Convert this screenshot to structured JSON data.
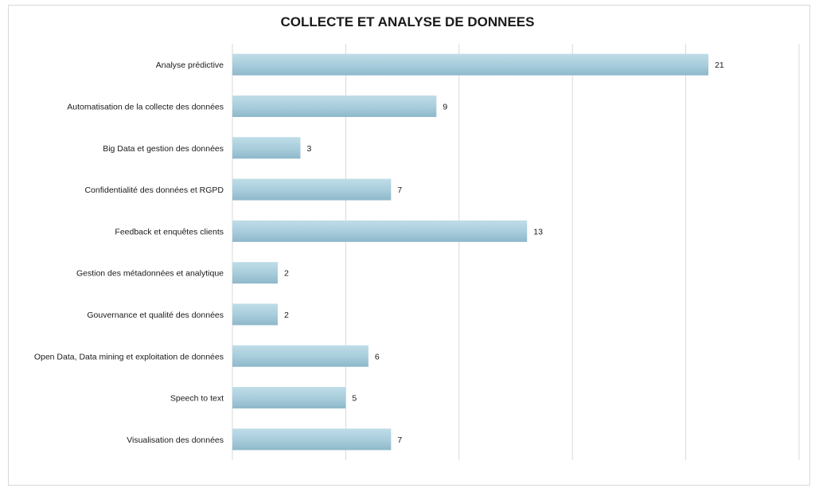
{
  "chart_data": {
    "type": "bar",
    "orientation": "horizontal",
    "title": "COLLECTE ET ANALYSE DE DONNEES",
    "categories": [
      "Analyse prédictive",
      "Automatisation de la collecte des données",
      "Big Data et gestion des données",
      "Confidentialité des données et RGPD",
      "Feedback et enquêtes clients",
      "Gestion des métadonnées et analytique",
      "Gouvernance et qualité des données",
      "Open Data, Data mining et exploitation de données",
      "Speech to text",
      "Visualisation des données"
    ],
    "values": [
      21,
      9,
      3,
      7,
      13,
      2,
      2,
      6,
      5,
      7
    ],
    "xlim": [
      0,
      25
    ],
    "grid": true,
    "legend": "none",
    "bar_color": "#a7ccdb",
    "bar_color_light": "#bfdde8",
    "bar_color_dark": "#8db8ca",
    "gridline_color": "#d9d9d9"
  }
}
